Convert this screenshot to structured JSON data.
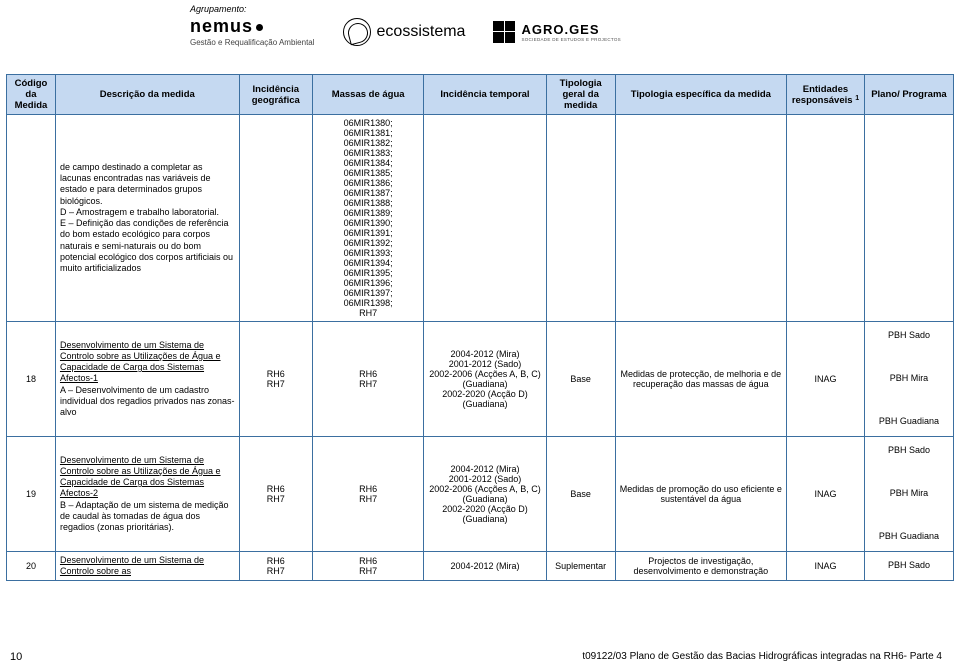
{
  "header": {
    "agrupamento_label": "Agrupamento:",
    "nemus": {
      "brand": "nemus",
      "sub": "Gestão e Requalificação Ambiental"
    },
    "ecossistema": {
      "text": "ecossistema"
    },
    "agroges": {
      "brand": "AGRO.GES",
      "sub": "SOCIEDADE DE ESTUDOS E PROJECTOS"
    }
  },
  "table": {
    "headers": {
      "codigo": "Código da Medida",
      "desc": "Descrição da medida",
      "geo": "Incidência geográfica",
      "massas": "Massas de água",
      "temp": "Incidência temporal",
      "tip": "Tipologia geral da medida",
      "tipesp": "Tipologia específica da medida",
      "ent_line1": "Entidades responsáveis",
      "ent_sup": "1",
      "plano": "Plano/ Programa"
    },
    "rows": [
      {
        "codigo": "",
        "desc_html": "de campo destinado a completar as lacunas encontradas nas variáveis de estado e para determinados grupos biológicos.\nD – Amostragem e trabalho laboratorial.\nE – Definição das condições de referência do bom estado ecológico para corpos naturais e semi-naturais ou do bom potencial ecológico dos corpos artificiais ou muito artificializados",
        "geo": "",
        "massas": "06MIR1380; 06MIR1381; 06MIR1382; 06MIR1383; 06MIR1384; 06MIR1385; 06MIR1386; 06MIR1387; 06MIR1388; 06MIR1389; 06MIR1390; 06MIR1391; 06MIR1392; 06MIR1393; 06MIR1394; 06MIR1395; 06MIR1396; 06MIR1397; 06MIR1398; RH7",
        "temp": "",
        "tip": "",
        "tipesp": "",
        "ent": "",
        "plano": ""
      },
      {
        "codigo": "18",
        "desc_under": "Desenvolvimento de um Sistema de Controlo sobre as Utilizações de Água e Capacidade de Carga dos Sistemas Afectos-1",
        "desc_rest": "A – Desenvolvimento de um cadastro individual dos regadios privados nas zonas-alvo",
        "geo": "RH6\nRH7",
        "massas": "RH6\nRH7",
        "temp": "2004-2012 (Mira)\n2001-2012 (Sado)\n2002-2006 (Acções A, B, C) (Guadiana)\n2002-2020 (Acção D) (Guadiana)",
        "tip": "Base",
        "tipesp": "Medidas de protecção, de melhoria e de recuperação das massas de água",
        "ent": "INAG",
        "plano": "PBH Sado\n\nPBH Mira\n\nPBH Guadiana"
      },
      {
        "codigo": "19",
        "desc_under": "Desenvolvimento de um Sistema de Controlo sobre as Utilizações de Água e Capacidade de Carga dos Sistemas Afectos-2",
        "desc_rest": "B – Adaptação de um sistema de medição de caudal às tomadas de água dos regadios (zonas prioritárias).",
        "geo": "RH6\nRH7",
        "massas": "RH6\nRH7",
        "temp": "2004-2012 (Mira)\n2001-2012 (Sado)\n2002-2006 (Acções A, B, C) (Guadiana)\n2002-2020 (Acção D) (Guadiana)",
        "tip": "Base",
        "tipesp": "Medidas de promoção do uso eficiente e sustentável da água",
        "ent": "INAG",
        "plano": "PBH Sado\n\nPBH Mira\n\nPBH Guadiana"
      },
      {
        "codigo": "20",
        "desc_under": "Desenvolvimento de um Sistema de Controlo sobre as",
        "desc_rest": "",
        "geo": "RH6\nRH7",
        "massas": "RH6\nRH7",
        "temp": "2004-2012 (Mira)",
        "tip": "Suplementar",
        "tipesp": "Projectos de investigação, desenvolvimento e demonstração",
        "ent": "INAG",
        "plano": "PBH Sado"
      }
    ]
  },
  "footer": {
    "page": "10",
    "ref": "t09122/03",
    "title": "Plano de Gestão das Bacias Hidrográficas integradas na RH6- Parte 4"
  }
}
